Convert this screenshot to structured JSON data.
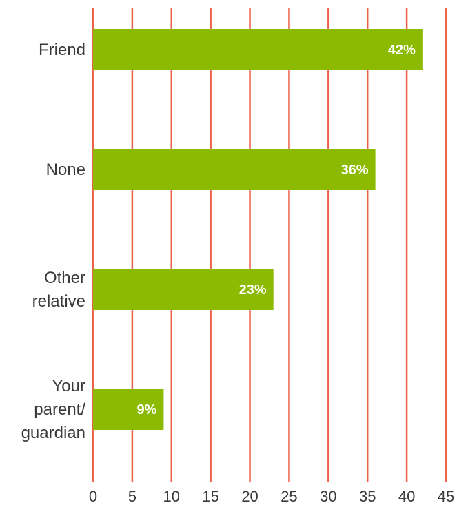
{
  "chart_data": {
    "type": "bar",
    "orientation": "horizontal",
    "categories": [
      "Friend",
      "None",
      "Other relative",
      "Your parent/ guardian"
    ],
    "category_lines": [
      [
        "Friend"
      ],
      [
        "None"
      ],
      [
        "Other",
        "relative"
      ],
      [
        "Your",
        "parent/",
        "guardian"
      ]
    ],
    "values": [
      42,
      36,
      23,
      9
    ],
    "value_labels": [
      "42%",
      "36%",
      "23%",
      "9%"
    ],
    "xlim": [
      0,
      45
    ],
    "xticks": [
      0,
      5,
      10,
      15,
      20,
      25,
      30,
      35,
      40,
      45
    ],
    "grid": "vertical",
    "legend": "none",
    "colors": {
      "bar": "#8cba00",
      "grid": "#f0614a",
      "text": "#3a3a3a",
      "label": "#ffffff"
    }
  }
}
